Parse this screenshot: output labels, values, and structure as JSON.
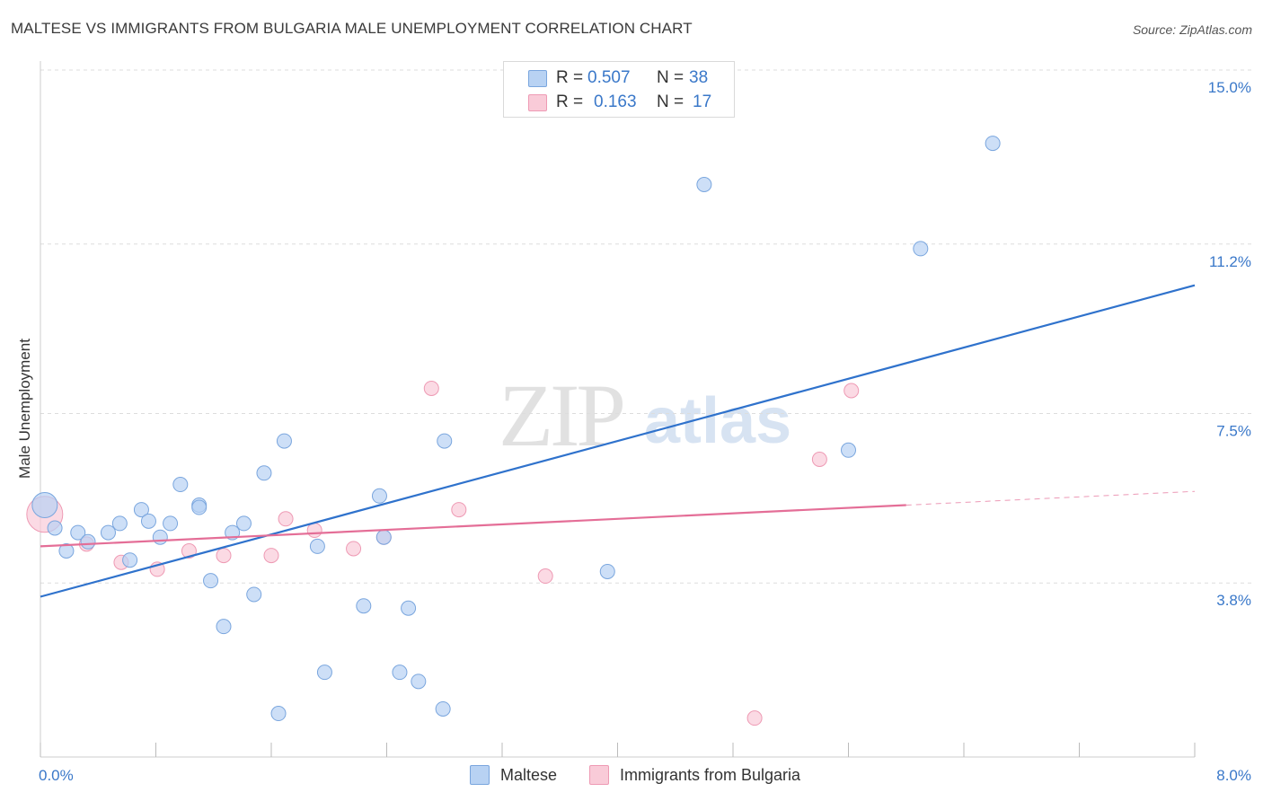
{
  "title": "MALTESE VS IMMIGRANTS FROM BULGARIA MALE UNEMPLOYMENT CORRELATION CHART",
  "source": "Source: ZipAtlas.com",
  "watermark": {
    "part1": "ZIP",
    "part2": "atlas"
  },
  "legend_top": {
    "rows": [
      {
        "r_label": "R =",
        "r_value": "0.507",
        "n_label": "N =",
        "n_value": "38"
      },
      {
        "r_label": "R =",
        "r_value": "0.163",
        "n_label": "N =",
        "n_value": "17"
      }
    ]
  },
  "legend_bottom": {
    "series1": "Maltese",
    "series2": "Immigrants from Bulgaria"
  },
  "colors": {
    "maltese_fill": "#b8d2f3",
    "maltese_stroke": "#7aa6de",
    "maltese_line": "#2f72cc",
    "bulgaria_fill": "#f9cbd8",
    "bulgaria_stroke": "#ee9ab4",
    "bulgaria_line": "#e46e97",
    "axis_text": "#3a78c9",
    "grid": "#dddddd"
  },
  "chart_data": {
    "type": "scatter",
    "title": "MALTESE VS IMMIGRANTS FROM BULGARIA MALE UNEMPLOYMENT CORRELATION CHART",
    "xlabel": "",
    "ylabel": "Male Unemployment",
    "xlim": [
      0.0,
      8.0
    ],
    "ylim": [
      0.0,
      15.0
    ],
    "x_tick_labels": [
      "0.0%",
      "8.0%"
    ],
    "y_ticks": [
      3.8,
      7.5,
      11.2,
      15.0
    ],
    "y_tick_labels": [
      "3.8%",
      "7.5%",
      "11.2%",
      "15.0%"
    ],
    "grid": true,
    "series": [
      {
        "name": "Maltese",
        "r": 0.507,
        "n": 38,
        "points": [
          [
            0.03,
            5.5
          ],
          [
            0.1,
            5.0
          ],
          [
            0.18,
            4.5
          ],
          [
            0.26,
            4.9
          ],
          [
            0.33,
            4.7
          ],
          [
            0.47,
            4.9
          ],
          [
            0.55,
            5.1
          ],
          [
            0.62,
            4.3
          ],
          [
            0.7,
            5.4
          ],
          [
            0.75,
            5.15
          ],
          [
            0.83,
            4.8
          ],
          [
            0.9,
            5.1
          ],
          [
            0.97,
            5.95
          ],
          [
            1.1,
            5.5
          ],
          [
            1.18,
            3.85
          ],
          [
            1.27,
            2.85
          ],
          [
            1.33,
            4.9
          ],
          [
            1.41,
            5.1
          ],
          [
            1.48,
            3.55
          ],
          [
            1.55,
            6.2
          ],
          [
            1.65,
            0.95
          ],
          [
            1.69,
            6.9
          ],
          [
            1.92,
            4.6
          ],
          [
            1.97,
            1.85
          ],
          [
            2.24,
            3.3
          ],
          [
            2.35,
            5.7
          ],
          [
            2.38,
            4.8
          ],
          [
            2.49,
            1.85
          ],
          [
            2.55,
            3.25
          ],
          [
            2.62,
            1.65
          ],
          [
            2.79,
            1.05
          ],
          [
            2.8,
            6.9
          ],
          [
            3.93,
            4.05
          ],
          [
            4.6,
            12.5
          ],
          [
            5.6,
            6.7
          ],
          [
            6.1,
            11.1
          ],
          [
            6.6,
            13.4
          ],
          [
            1.1,
            5.45
          ]
        ],
        "trend": {
          "x": [
            0.0,
            8.0
          ],
          "y": [
            3.5,
            10.3
          ]
        }
      },
      {
        "name": "Immigrants from Bulgaria",
        "r": 0.163,
        "n": 17,
        "points": [
          [
            0.03,
            5.3
          ],
          [
            0.32,
            4.65
          ],
          [
            0.56,
            4.25
          ],
          [
            0.81,
            4.1
          ],
          [
            1.03,
            4.5
          ],
          [
            1.27,
            4.4
          ],
          [
            1.6,
            4.4
          ],
          [
            1.7,
            5.2
          ],
          [
            1.9,
            4.95
          ],
          [
            2.17,
            4.55
          ],
          [
            2.38,
            4.8
          ],
          [
            2.71,
            8.05
          ],
          [
            2.9,
            5.4
          ],
          [
            3.5,
            3.95
          ],
          [
            4.95,
            0.85
          ],
          [
            5.4,
            6.5
          ],
          [
            5.62,
            8.0
          ]
        ],
        "trend": {
          "x": [
            0.0,
            6.0
          ],
          "y": [
            4.6,
            5.5
          ]
        },
        "trend_extension": {
          "x": [
            6.0,
            8.0
          ],
          "y": [
            5.5,
            5.8
          ]
        }
      }
    ]
  }
}
